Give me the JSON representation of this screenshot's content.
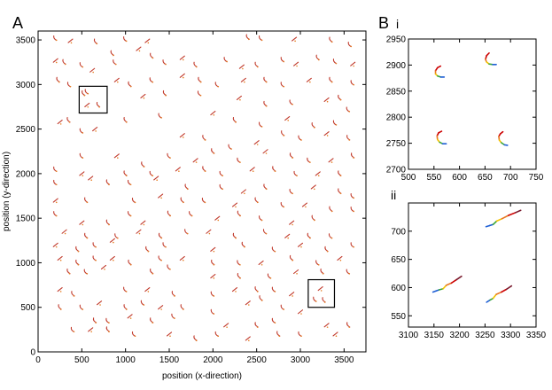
{
  "chart_data": [
    {
      "id": "A",
      "type": "scatter",
      "panel_label": "A",
      "xlabel": "position (x-direction)",
      "ylabel": "position (y-direction)",
      "xlim": [
        0,
        3750
      ],
      "ylim": [
        0,
        3600
      ],
      "xticks": [
        0,
        500,
        1000,
        1500,
        2000,
        2500,
        3000,
        3500
      ],
      "yticks": [
        0,
        500,
        1000,
        1500,
        2000,
        2500,
        3000,
        3500
      ],
      "grid": false,
      "legend": "none",
      "colors": {
        "trajectory": "#c0392b",
        "marker": "#e67e22",
        "box": "#000000"
      },
      "inset_boxes": [
        {
          "x0": 470,
          "x1": 790,
          "y0": 2680,
          "y1": 2980
        },
        {
          "x0": 3090,
          "x1": 3390,
          "y0": 500,
          "y1": 810
        }
      ],
      "trajectories": [
        [
          200,
          3520
        ],
        [
          370,
          3490
        ],
        [
          660,
          3480
        ],
        [
          1000,
          3510
        ],
        [
          1250,
          3490
        ],
        [
          2400,
          3530
        ],
        [
          2550,
          3520
        ],
        [
          2930,
          3510
        ],
        [
          3350,
          3500
        ],
        [
          3570,
          3450
        ],
        [
          200,
          3270
        ],
        [
          300,
          3250
        ],
        [
          500,
          3220
        ],
        [
          620,
          3160
        ],
        [
          850,
          3350
        ],
        [
          880,
          3250
        ],
        [
          1150,
          3400
        ],
        [
          1300,
          3320
        ],
        [
          1450,
          3250
        ],
        [
          1650,
          3300
        ],
        [
          1800,
          3220
        ],
        [
          2150,
          3280
        ],
        [
          2330,
          3200
        ],
        [
          2500,
          3220
        ],
        [
          2800,
          3280
        ],
        [
          2950,
          3230
        ],
        [
          3200,
          3300
        ],
        [
          3400,
          3260
        ],
        [
          3600,
          3230
        ],
        [
          230,
          3050
        ],
        [
          360,
          3000
        ],
        [
          900,
          3050
        ],
        [
          1050,
          3000
        ],
        [
          1300,
          3050
        ],
        [
          1650,
          3100
        ],
        [
          1850,
          3050
        ],
        [
          2050,
          3000
        ],
        [
          2350,
          3050
        ],
        [
          2600,
          3050
        ],
        [
          2800,
          3000
        ],
        [
          3100,
          3050
        ],
        [
          3350,
          3050
        ],
        [
          3600,
          3020
        ],
        [
          1200,
          2870
        ],
        [
          1450,
          2900
        ],
        [
          1850,
          2900
        ],
        [
          2300,
          2850
        ],
        [
          2600,
          2780
        ],
        [
          2900,
          2800
        ],
        [
          3300,
          2830
        ],
        [
          3450,
          2850
        ],
        [
          3550,
          2720
        ],
        [
          250,
          2580
        ],
        [
          350,
          2600
        ],
        [
          500,
          2480
        ],
        [
          650,
          2500
        ],
        [
          1000,
          2600
        ],
        [
          1400,
          2650
        ],
        [
          2000,
          2680
        ],
        [
          2250,
          2600
        ],
        [
          2550,
          2550
        ],
        [
          2850,
          2620
        ],
        [
          3150,
          2540
        ],
        [
          3400,
          2570
        ],
        [
          1650,
          2430
        ],
        [
          1900,
          2400
        ],
        [
          2200,
          2300
        ],
        [
          2500,
          2350
        ],
        [
          2800,
          2450
        ],
        [
          3000,
          2400
        ],
        [
          3300,
          2450
        ],
        [
          3550,
          2400
        ],
        [
          500,
          2200
        ],
        [
          900,
          2200
        ],
        [
          1200,
          2100
        ],
        [
          1500,
          2200
        ],
        [
          1800,
          2150
        ],
        [
          2000,
          2250
        ],
        [
          2300,
          2150
        ],
        [
          2600,
          2250
        ],
        [
          2900,
          2200
        ],
        [
          3100,
          2150
        ],
        [
          3350,
          2150
        ],
        [
          3600,
          2200
        ],
        [
          200,
          2050
        ],
        [
          500,
          2000
        ],
        [
          1000,
          2000
        ],
        [
          1300,
          2000
        ],
        [
          1600,
          2050
        ],
        [
          1900,
          2050
        ],
        [
          2100,
          2000
        ],
        [
          2450,
          2050
        ],
        [
          2700,
          2050
        ],
        [
          2950,
          2000
        ],
        [
          3200,
          2000
        ],
        [
          3450,
          2000
        ],
        [
          200,
          1900
        ],
        [
          600,
          1950
        ],
        [
          800,
          1900
        ],
        [
          1050,
          1900
        ],
        [
          1350,
          1950
        ],
        [
          1700,
          1850
        ],
        [
          2100,
          1850
        ],
        [
          2350,
          1800
        ],
        [
          2600,
          1850
        ],
        [
          2900,
          1800
        ],
        [
          3150,
          1850
        ],
        [
          3450,
          1800
        ],
        [
          3600,
          1750
        ],
        [
          200,
          1700
        ],
        [
          550,
          1700
        ],
        [
          1100,
          1700
        ],
        [
          1400,
          1750
        ],
        [
          1650,
          1700
        ],
        [
          1900,
          1700
        ],
        [
          2250,
          1650
        ],
        [
          2500,
          1700
        ],
        [
          2800,
          1650
        ],
        [
          3050,
          1650
        ],
        [
          3350,
          1600
        ],
        [
          200,
          1550
        ],
        [
          500,
          1450
        ],
        [
          800,
          1450
        ],
        [
          1050,
          1550
        ],
        [
          1200,
          1450
        ],
        [
          1500,
          1550
        ],
        [
          1750,
          1550
        ],
        [
          2050,
          1500
        ],
        [
          2300,
          1550
        ],
        [
          2550,
          1500
        ],
        [
          2900,
          1450
        ],
        [
          3150,
          1500
        ],
        [
          3600,
          1600
        ],
        [
          300,
          1350
        ],
        [
          550,
          1300
        ],
        [
          900,
          1300
        ],
        [
          1150,
          1350
        ],
        [
          1400,
          1300
        ],
        [
          1700,
          1350
        ],
        [
          1950,
          1350
        ],
        [
          2250,
          1300
        ],
        [
          2600,
          1350
        ],
        [
          2850,
          1300
        ],
        [
          3100,
          1300
        ],
        [
          3350,
          1300
        ],
        [
          200,
          1200
        ],
        [
          450,
          1150
        ],
        [
          650,
          1200
        ],
        [
          850,
          1250
        ],
        [
          1250,
          1150
        ],
        [
          1450,
          1200
        ],
        [
          2000,
          1150
        ],
        [
          2350,
          1200
        ],
        [
          2700,
          1150
        ],
        [
          3000,
          1200
        ],
        [
          3300,
          1150
        ],
        [
          3600,
          1200
        ],
        [
          250,
          1050
        ],
        [
          450,
          1000
        ],
        [
          650,
          1050
        ],
        [
          850,
          1050
        ],
        [
          1050,
          1000
        ],
        [
          1400,
          1050
        ],
        [
          1650,
          1050
        ],
        [
          2000,
          1000
        ],
        [
          2300,
          1000
        ],
        [
          2550,
          1000
        ],
        [
          2900,
          1050
        ],
        [
          3200,
          1000
        ],
        [
          3450,
          1050
        ],
        [
          350,
          900
        ],
        [
          550,
          900
        ],
        [
          750,
          950
        ],
        [
          1300,
          900
        ],
        [
          1500,
          950
        ],
        [
          2000,
          850
        ],
        [
          2300,
          850
        ],
        [
          2650,
          850
        ],
        [
          2950,
          900
        ],
        [
          3250,
          900
        ],
        [
          3550,
          900
        ],
        [
          250,
          700
        ],
        [
          400,
          650
        ],
        [
          1000,
          700
        ],
        [
          1250,
          700
        ],
        [
          1550,
          650
        ],
        [
          2000,
          650
        ],
        [
          2250,
          700
        ],
        [
          2500,
          700
        ],
        [
          2700,
          700
        ],
        [
          2900,
          650
        ],
        [
          250,
          500
        ],
        [
          500,
          500
        ],
        [
          700,
          550
        ],
        [
          1000,
          500
        ],
        [
          1200,
          550
        ],
        [
          1400,
          500
        ],
        [
          1650,
          500
        ],
        [
          2000,
          450
        ],
        [
          2400,
          550
        ],
        [
          2550,
          600
        ],
        [
          2800,
          500
        ],
        [
          3000,
          450
        ],
        [
          650,
          350
        ],
        [
          800,
          350
        ],
        [
          1050,
          400
        ],
        [
          1300,
          350
        ],
        [
          1550,
          400
        ],
        [
          2150,
          300
        ],
        [
          2500,
          300
        ],
        [
          2700,
          350
        ],
        [
          3300,
          300
        ],
        [
          3550,
          300
        ],
        [
          400,
          250
        ],
        [
          600,
          250
        ],
        [
          800,
          250
        ],
        [
          1100,
          200
        ],
        [
          1500,
          200
        ],
        [
          1800,
          150
        ],
        [
          2050,
          200
        ],
        [
          2400,
          150
        ],
        [
          2750,
          200
        ],
        [
          3000,
          200
        ],
        [
          3400,
          200
        ],
        [
          520,
          2900
        ],
        [
          560,
          2920
        ],
        [
          560,
          2770
        ],
        [
          690,
          2770
        ],
        [
          3170,
          590
        ],
        [
          3230,
          710
        ],
        [
          3270,
          580
        ]
      ]
    },
    {
      "id": "Bi",
      "type": "line",
      "panel_label": "B",
      "sub_label": "i",
      "xlim": [
        500,
        750
      ],
      "ylim": [
        2700,
        2950
      ],
      "xticks": [
        500,
        550,
        600,
        650,
        700,
        750
      ],
      "yticks": [
        2700,
        2750,
        2800,
        2850,
        2900,
        2950
      ],
      "grid": false,
      "colors": [
        "#cc0000",
        "#e87722",
        "#f2c200",
        "#3aa63a",
        "#1e5fd6"
      ],
      "tracks": [
        [
          [
            563,
            2898
          ],
          [
            557,
            2895
          ],
          [
            553,
            2889
          ],
          [
            553,
            2883
          ],
          [
            557,
            2879
          ],
          [
            563,
            2877
          ],
          [
            570,
            2877
          ]
        ],
        [
          [
            658,
            2923
          ],
          [
            653,
            2918
          ],
          [
            651,
            2911
          ],
          [
            653,
            2906
          ],
          [
            658,
            2902
          ],
          [
            665,
            2901
          ],
          [
            672,
            2901
          ]
        ],
        [
          [
            565,
            2773
          ],
          [
            559,
            2770
          ],
          [
            556,
            2764
          ],
          [
            557,
            2757
          ],
          [
            561,
            2752
          ],
          [
            567,
            2749
          ],
          [
            574,
            2749
          ]
        ],
        [
          [
            685,
            2772
          ],
          [
            680,
            2768
          ],
          [
            677,
            2763
          ],
          [
            678,
            2756
          ],
          [
            682,
            2751
          ],
          [
            688,
            2747
          ],
          [
            694,
            2746
          ]
        ]
      ]
    },
    {
      "id": "Bii",
      "type": "line",
      "sub_label": "ii",
      "xlim": [
        3100,
        3350
      ],
      "ylim": [
        530,
        750
      ],
      "xticks": [
        3100,
        3150,
        3200,
        3250,
        3300,
        3350
      ],
      "yticks": [
        550,
        600,
        650,
        700
      ],
      "grid": false,
      "colors": [
        "#1e5fd6",
        "#3aa63a",
        "#f2c200",
        "#e87722",
        "#cc0000",
        "#7a1a2e"
      ],
      "tracks": [
        [
          [
            3148,
            592
          ],
          [
            3154,
            594
          ],
          [
            3160,
            596
          ],
          [
            3168,
            598
          ],
          [
            3174,
            604
          ],
          [
            3184,
            608
          ],
          [
            3194,
            614
          ],
          [
            3204,
            620
          ]
        ],
        [
          [
            3252,
            708
          ],
          [
            3259,
            710
          ],
          [
            3266,
            712
          ],
          [
            3273,
            718
          ],
          [
            3283,
            722
          ],
          [
            3296,
            728
          ],
          [
            3310,
            733
          ],
          [
            3320,
            737
          ]
        ],
        [
          [
            3253,
            574
          ],
          [
            3260,
            578
          ],
          [
            3266,
            581
          ],
          [
            3272,
            588
          ],
          [
            3282,
            592
          ],
          [
            3292,
            597
          ],
          [
            3302,
            603
          ]
        ]
      ]
    }
  ]
}
